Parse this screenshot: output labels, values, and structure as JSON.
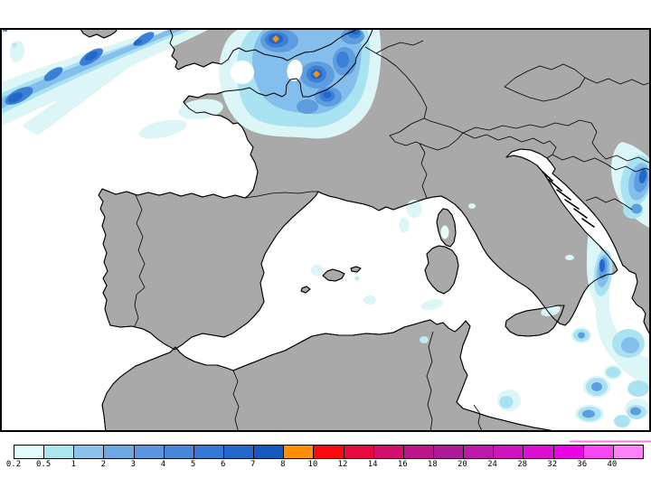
{
  "map": {
    "sea_color": "#FFFFFF",
    "land_color": "#A9A9A9",
    "coastline_color": "#000000",
    "border_color": "#000000",
    "frame_color": "#000000",
    "palette": {
      "pale": "#DCF5F7",
      "pale2": "#E8FAFA",
      "light": "#A9E2F0",
      "cyan": "#BEEAF2",
      "lightblue": "#84BEEC",
      "medium": "#5E9CE0",
      "mediumdark": "#3A80D6",
      "dark": "#2268C8",
      "white_gap": "#FFFFFF",
      "extreme": "#FF9005",
      "artifact_pink": "#FF7ADC"
    }
  },
  "colorbar": {
    "labels": [
      "0.2",
      "0.5",
      "1",
      "2",
      "3",
      "4",
      "5",
      "6",
      "7",
      "8",
      "10",
      "12",
      "14",
      "16",
      "18",
      "20",
      "24",
      "28",
      "32",
      "36",
      "40"
    ],
    "colors": [
      "#E1FAFA",
      "#AAE6F0",
      "#8CC3EC",
      "#6EA8E4",
      "#5A96E0",
      "#4687DC",
      "#3278D4",
      "#2268CB",
      "#145ABE",
      "#FF9005",
      "#FA0A0A",
      "#E60A41",
      "#D20F6E",
      "#BE148C",
      "#AF199B",
      "#BE19AA",
      "#CD14BE",
      "#DC0FD2",
      "#EB05E6",
      "#FA46F5",
      "#FF82FA"
    ],
    "tick_color": "#000000",
    "label_color": "#000000"
  }
}
